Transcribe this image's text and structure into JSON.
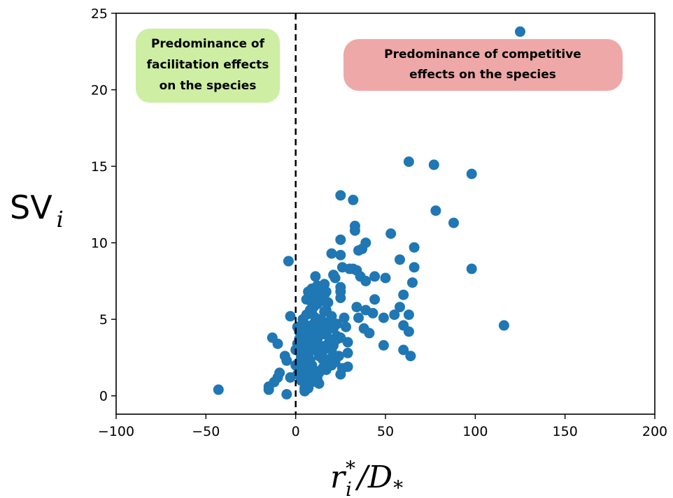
{
  "chart_data": {
    "type": "scatter",
    "xlim": [
      -100,
      200
    ],
    "ylim": [
      -1.2,
      25
    ],
    "xticks": [
      -100,
      -50,
      0,
      50,
      100,
      150,
      200
    ],
    "xtick_labels": [
      "−100",
      "−50",
      "0",
      "50",
      "100",
      "150",
      "200"
    ],
    "yticks": [
      0,
      5,
      10,
      15,
      20,
      25
    ],
    "ytick_labels": [
      "0",
      "5",
      "10",
      "15",
      "20",
      "25"
    ],
    "ylabel": {
      "main": "SV",
      "sub": "i"
    },
    "xlabel": {
      "r": "r",
      "star": "*",
      "i": "i",
      "slash": "/D",
      "sub": "*"
    },
    "vline_x": 0,
    "grid": false,
    "marker_color": "#1f77b4",
    "annotations": [
      {
        "lines": [
          "Predominance of",
          "facilitation effects",
          "on the species"
        ],
        "color": "#cdeea3"
      },
      {
        "lines": [
          "Predominance of competitive",
          "effects on the species"
        ],
        "color": "#eea8a8"
      }
    ],
    "points": [
      [
        125,
        23.8
      ],
      [
        63,
        15.3
      ],
      [
        77,
        15.1
      ],
      [
        98,
        14.5
      ],
      [
        25,
        13.1
      ],
      [
        32,
        12.8
      ],
      [
        78,
        12.1
      ],
      [
        88,
        11.3
      ],
      [
        33,
        11.1
      ],
      [
        33,
        10.8
      ],
      [
        53,
        10.6
      ],
      [
        25,
        10.2
      ],
      [
        39,
        10.0
      ],
      [
        66,
        9.7
      ],
      [
        37,
        9.6
      ],
      [
        35,
        9.5
      ],
      [
        20,
        9.3
      ],
      [
        25,
        9.2
      ],
      [
        58,
        8.9
      ],
      [
        -4,
        8.8
      ],
      [
        66,
        8.4
      ],
      [
        98,
        8.3
      ],
      [
        26,
        8.4
      ],
      [
        32,
        8.3
      ],
      [
        34,
        8.2
      ],
      [
        30,
        8.3
      ],
      [
        36,
        7.8
      ],
      [
        44,
        7.8
      ],
      [
        50,
        7.7
      ],
      [
        21,
        7.9
      ],
      [
        22,
        7.7
      ],
      [
        11,
        7.8
      ],
      [
        39,
        7.5
      ],
      [
        16,
        7.3
      ],
      [
        25,
        7.1
      ],
      [
        65,
        7.4
      ],
      [
        9,
        7.0
      ],
      [
        12,
        6.9
      ],
      [
        17,
        6.8
      ],
      [
        25,
        6.8
      ],
      [
        16,
        6.6
      ],
      [
        60,
        6.6
      ],
      [
        25,
        6.4
      ],
      [
        44,
        6.3
      ],
      [
        6,
        6.3
      ],
      [
        15,
        6.2
      ],
      [
        9,
        6.1
      ],
      [
        58,
        5.8
      ],
      [
        34,
        5.8
      ],
      [
        17,
        5.6
      ],
      [
        39,
        5.6
      ],
      [
        43,
        5.4
      ],
      [
        55,
        5.3
      ],
      [
        63,
        5.3
      ],
      [
        9,
        5.4
      ],
      [
        -3,
        5.2
      ],
      [
        35,
        5.1
      ],
      [
        27,
        5.1
      ],
      [
        49,
        5.1
      ],
      [
        60,
        4.6
      ],
      [
        116,
        4.6
      ],
      [
        6,
        4.6
      ],
      [
        38,
        4.4
      ],
      [
        28,
        4.5
      ],
      [
        15,
        4.3
      ],
      [
        63,
        4.2
      ],
      [
        41,
        4.1
      ],
      [
        17,
        4.0
      ],
      [
        25,
        3.8
      ],
      [
        23,
        3.7
      ],
      [
        -13,
        3.8
      ],
      [
        -10,
        3.4
      ],
      [
        29,
        3.5
      ],
      [
        21,
        3.3
      ],
      [
        49,
        3.3
      ],
      [
        60,
        3.0
      ],
      [
        29,
        2.8
      ],
      [
        64,
        2.6
      ],
      [
        24,
        2.6
      ],
      [
        -6,
        2.6
      ],
      [
        -5,
        2.3
      ],
      [
        2,
        2.2
      ],
      [
        20,
        2.0
      ],
      [
        29,
        1.9
      ],
      [
        26,
        1.8
      ],
      [
        6,
        1.6
      ],
      [
        -9,
        1.5
      ],
      [
        -10,
        1.2
      ],
      [
        25,
        1.4
      ],
      [
        -3,
        1.2
      ],
      [
        -12,
        0.9
      ],
      [
        -15,
        0.6
      ],
      [
        -15,
        0.4
      ],
      [
        5,
        0.5
      ],
      [
        -5,
        0.1
      ],
      [
        -43,
        0.4
      ],
      [
        1,
        4.5
      ],
      [
        2,
        4.2
      ],
      [
        3,
        3.8
      ],
      [
        4,
        3.5
      ],
      [
        5,
        3.2
      ],
      [
        6,
        2.9
      ],
      [
        7,
        2.6
      ],
      [
        8,
        2.3
      ],
      [
        9,
        2.0
      ],
      [
        10,
        1.7
      ],
      [
        11,
        1.4
      ],
      [
        12,
        1.1
      ],
      [
        13,
        0.8
      ],
      [
        2,
        2.9
      ],
      [
        3,
        2.5
      ],
      [
        4,
        2.0
      ],
      [
        5,
        1.5
      ],
      [
        6,
        1.1
      ],
      [
        7,
        0.8
      ],
      [
        8,
        3.9
      ],
      [
        9,
        4.3
      ],
      [
        10,
        4.7
      ],
      [
        11,
        5.1
      ],
      [
        12,
        3.6
      ],
      [
        13,
        3.2
      ],
      [
        14,
        2.8
      ],
      [
        15,
        2.4
      ],
      [
        16,
        2.0
      ],
      [
        17,
        1.7
      ],
      [
        18,
        3.3
      ],
      [
        19,
        3.7
      ],
      [
        20,
        3.0
      ],
      [
        21,
        2.6
      ],
      [
        22,
        2.2
      ],
      [
        23,
        3.9
      ],
      [
        4,
        5.0
      ],
      [
        6,
        5.3
      ],
      [
        8,
        5.6
      ],
      [
        10,
        5.8
      ],
      [
        12,
        6.0
      ],
      [
        14,
        6.3
      ],
      [
        5,
        0.3
      ],
      [
        7,
        0.5
      ],
      [
        9,
        0.9
      ],
      [
        11,
        1.2
      ],
      [
        13,
        1.5
      ],
      [
        15,
        1.8
      ],
      [
        3,
        1.0
      ],
      [
        1,
        1.4
      ],
      [
        0,
        2.0
      ],
      [
        0,
        3.0
      ],
      [
        1,
        3.4
      ],
      [
        2,
        3.7
      ],
      [
        3,
        4.6
      ],
      [
        5,
        4.1
      ],
      [
        7,
        3.7
      ],
      [
        9,
        3.4
      ],
      [
        11,
        3.0
      ],
      [
        13,
        2.6
      ],
      [
        15,
        2.9
      ],
      [
        17,
        3.3
      ],
      [
        19,
        2.4
      ],
      [
        14,
        4.0
      ],
      [
        16,
        4.5
      ],
      [
        18,
        4.8
      ],
      [
        20,
        5.2
      ],
      [
        12,
        4.4
      ],
      [
        10,
        3.9
      ],
      [
        8,
        3.1
      ],
      [
        6,
        2.5
      ],
      [
        4,
        2.7
      ],
      [
        2,
        1.7
      ],
      [
        21,
        4.4
      ],
      [
        23,
        4.7
      ],
      [
        10,
        6.5
      ],
      [
        12,
        7.2
      ],
      [
        7,
        6.8
      ],
      [
        16,
        5.5
      ],
      [
        18,
        6.1
      ],
      [
        14,
        5.0
      ]
    ]
  }
}
